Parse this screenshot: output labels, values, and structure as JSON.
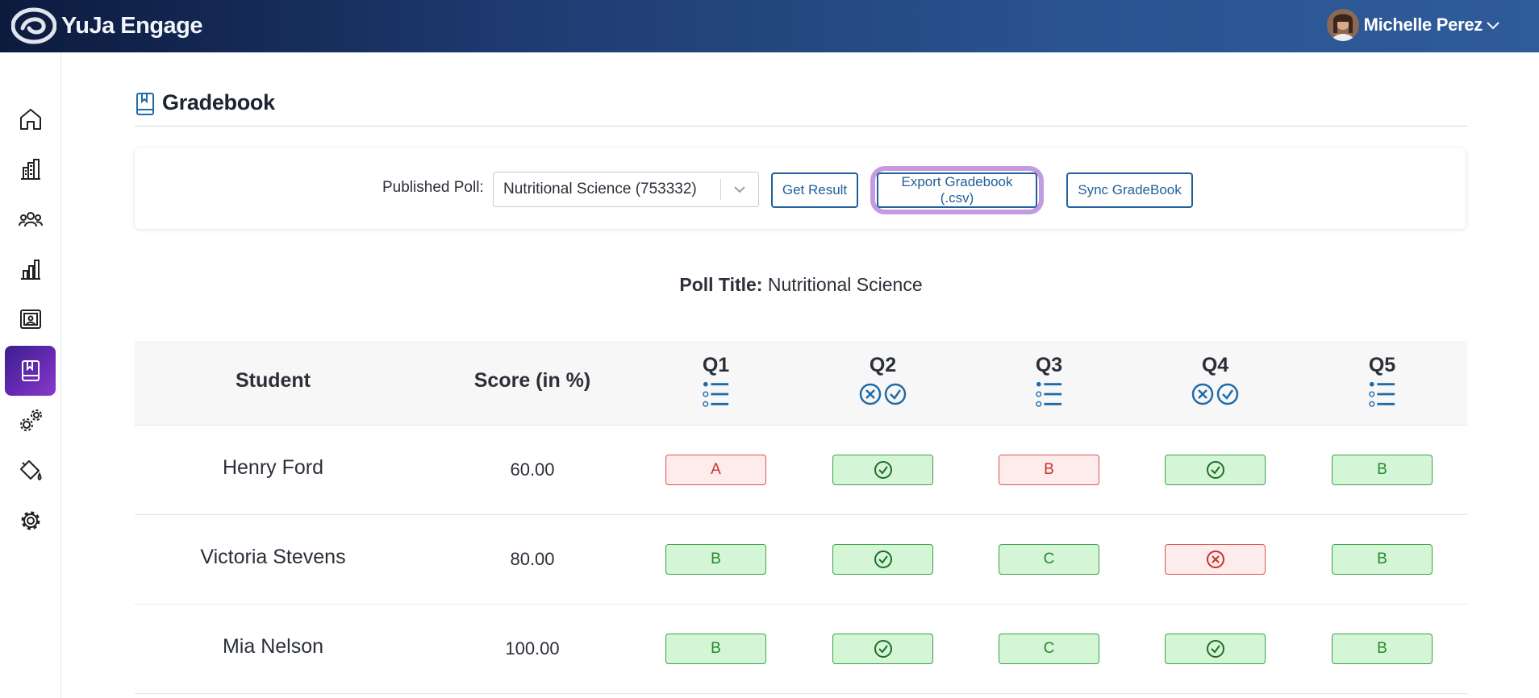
{
  "app": {
    "name": "YuJa Engage",
    "user_name": "Michelle Perez"
  },
  "sidebar": {
    "items": [
      {
        "icon": "home-icon",
        "active": false
      },
      {
        "icon": "building-chart-icon",
        "active": false
      },
      {
        "icon": "users-icon",
        "active": false
      },
      {
        "icon": "bar-chart-icon",
        "active": false
      },
      {
        "icon": "presentation-icon",
        "active": false
      },
      {
        "icon": "gradebook-icon",
        "active": true
      },
      {
        "icon": "integrations-icon",
        "active": false
      },
      {
        "icon": "paint-bucket-icon",
        "active": false
      },
      {
        "icon": "settings-icon",
        "active": false
      }
    ]
  },
  "page": {
    "title": "Gradebook"
  },
  "toolbar": {
    "published_poll_label": "Published Poll:",
    "selected_poll": "Nutritional Science (753332)",
    "get_result_label": "Get Result",
    "export_label": "Export Gradebook (.csv)",
    "sync_label": "Sync GradeBook"
  },
  "poll": {
    "title_label": "Poll Title:",
    "title_value": "Nutritional Science"
  },
  "table": {
    "headers": {
      "student": "Student",
      "score": "Score (in %)"
    },
    "questions": [
      {
        "label": "Q1",
        "type": "multiple-choice"
      },
      {
        "label": "Q2",
        "type": "true-false"
      },
      {
        "label": "Q3",
        "type": "multiple-choice"
      },
      {
        "label": "Q4",
        "type": "true-false"
      },
      {
        "label": "Q5",
        "type": "multiple-choice"
      }
    ],
    "rows": [
      {
        "student": "Henry Ford",
        "score": "60.00",
        "answers": [
          {
            "text": "A",
            "correct": false
          },
          {
            "text": "",
            "correct": true
          },
          {
            "text": "B",
            "correct": false
          },
          {
            "text": "",
            "correct": true
          },
          {
            "text": "B",
            "correct": true
          }
        ]
      },
      {
        "student": "Victoria Stevens",
        "score": "80.00",
        "answers": [
          {
            "text": "B",
            "correct": true
          },
          {
            "text": "",
            "correct": true
          },
          {
            "text": "C",
            "correct": true
          },
          {
            "text": "",
            "correct": false
          },
          {
            "text": "B",
            "correct": true
          }
        ]
      },
      {
        "student": "Mia Nelson",
        "score": "100.00",
        "answers": [
          {
            "text": "B",
            "correct": true
          },
          {
            "text": "",
            "correct": true
          },
          {
            "text": "C",
            "correct": true
          },
          {
            "text": "",
            "correct": true
          },
          {
            "text": "B",
            "correct": true
          }
        ]
      }
    ]
  },
  "colors": {
    "brand_dark": "#0c1a3d",
    "brand_blue": "#2e5b9a",
    "active_nav": "#6a2bb5",
    "button_blue": "#1f5f9c",
    "correct_bg": "#d4f5d6",
    "correct_border": "#3aa343",
    "wrong_bg": "#fdeceb",
    "wrong_border": "#d9534f",
    "highlight_ring": "#c49be0"
  }
}
